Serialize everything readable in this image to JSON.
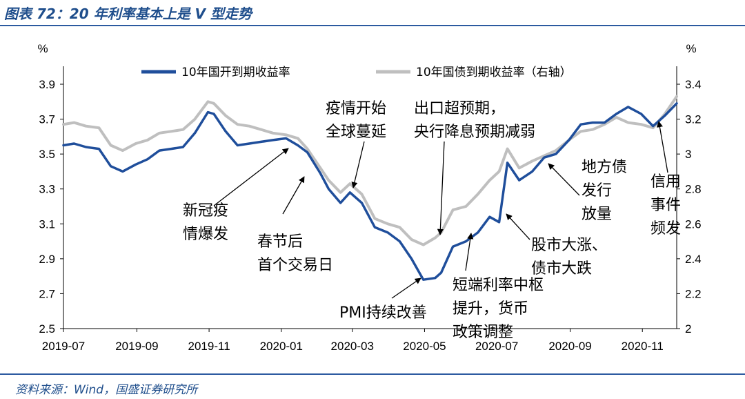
{
  "figure": {
    "title": "图表 72：20 年利率基本上是 V 型走势",
    "source": "资料来源：Wind，国盛证券研究所"
  },
  "chart_data": {
    "type": "line",
    "left_unit": "%",
    "right_unit": "%",
    "y_left": {
      "min": 2.5,
      "max": 3.9,
      "ticks": [
        "3.9",
        "3.7",
        "3.5",
        "3.3",
        "3.1",
        "2.9",
        "2.7",
        "2.5"
      ],
      "tick_values": [
        3.9,
        3.7,
        3.5,
        3.3,
        3.1,
        2.9,
        2.7,
        2.5
      ]
    },
    "y_right": {
      "min": 2.0,
      "max": 3.4,
      "ticks": [
        "3.4",
        "3.2",
        "3",
        "2.8",
        "2.6",
        "2.4",
        "2.2",
        "2"
      ],
      "tick_values": [
        3.4,
        3.2,
        3.0,
        2.8,
        2.6,
        2.4,
        2.2,
        2.0
      ]
    },
    "x_ticks": [
      "2019-07",
      "2019-09",
      "2019-11",
      "2020-01",
      "2020-03",
      "2020-05",
      "2020-07",
      "2020-09",
      "2020-11"
    ],
    "x_range": [
      "2019-07-01",
      "2020-11-30"
    ],
    "grid": false,
    "legend_position": "top",
    "series": [
      {
        "name": "10年国开到期收益率",
        "axis": "left",
        "color": "#1f4e9b",
        "points": [
          [
            "2019-07-01",
            3.55
          ],
          [
            "2019-07-10",
            3.56
          ],
          [
            "2019-07-20",
            3.54
          ],
          [
            "2019-07-31",
            3.53
          ],
          [
            "2019-08-10",
            3.43
          ],
          [
            "2019-08-20",
            3.4
          ],
          [
            "2019-08-31",
            3.44
          ],
          [
            "2019-09-10",
            3.47
          ],
          [
            "2019-09-20",
            3.52
          ],
          [
            "2019-09-30",
            3.53
          ],
          [
            "2019-10-10",
            3.54
          ],
          [
            "2019-10-20",
            3.62
          ],
          [
            "2019-10-31",
            3.74
          ],
          [
            "2019-11-05",
            3.73
          ],
          [
            "2019-11-15",
            3.63
          ],
          [
            "2019-11-25",
            3.55
          ],
          [
            "2019-12-05",
            3.56
          ],
          [
            "2019-12-15",
            3.57
          ],
          [
            "2019-12-25",
            3.58
          ],
          [
            "2020-01-05",
            3.59
          ],
          [
            "2020-01-15",
            3.55
          ],
          [
            "2020-01-23",
            3.51
          ],
          [
            "2020-02-03",
            3.39
          ],
          [
            "2020-02-10",
            3.3
          ],
          [
            "2020-02-20",
            3.22
          ],
          [
            "2020-02-28",
            3.28
          ],
          [
            "2020-03-09",
            3.22
          ],
          [
            "2020-03-20",
            3.08
          ],
          [
            "2020-03-31",
            3.05
          ],
          [
            "2020-04-10",
            3.0
          ],
          [
            "2020-04-20",
            2.9
          ],
          [
            "2020-04-30",
            2.78
          ],
          [
            "2020-05-10",
            2.79
          ],
          [
            "2020-05-15",
            2.82
          ],
          [
            "2020-05-25",
            2.97
          ],
          [
            "2020-06-05",
            3.0
          ],
          [
            "2020-06-15",
            3.05
          ],
          [
            "2020-06-25",
            3.14
          ],
          [
            "2020-07-03",
            3.11
          ],
          [
            "2020-07-10",
            3.45
          ],
          [
            "2020-07-20",
            3.35
          ],
          [
            "2020-07-31",
            3.4
          ],
          [
            "2020-08-10",
            3.48
          ],
          [
            "2020-08-20",
            3.5
          ],
          [
            "2020-08-31",
            3.58
          ],
          [
            "2020-09-10",
            3.67
          ],
          [
            "2020-09-20",
            3.68
          ],
          [
            "2020-09-30",
            3.68
          ],
          [
            "2020-10-10",
            3.73
          ],
          [
            "2020-10-20",
            3.77
          ],
          [
            "2020-10-31",
            3.73
          ],
          [
            "2020-11-10",
            3.66
          ],
          [
            "2020-11-20",
            3.72
          ],
          [
            "2020-11-30",
            3.79
          ]
        ]
      },
      {
        "name": "10年国债到期收益率（右轴）",
        "axis": "right",
        "color": "#bfbfbf",
        "points": [
          [
            "2019-07-01",
            3.17
          ],
          [
            "2019-07-10",
            3.18
          ],
          [
            "2019-07-20",
            3.16
          ],
          [
            "2019-07-31",
            3.15
          ],
          [
            "2019-08-10",
            3.05
          ],
          [
            "2019-08-20",
            3.02
          ],
          [
            "2019-08-31",
            3.06
          ],
          [
            "2019-09-10",
            3.08
          ],
          [
            "2019-09-20",
            3.12
          ],
          [
            "2019-09-30",
            3.13
          ],
          [
            "2019-10-10",
            3.14
          ],
          [
            "2019-10-20",
            3.2
          ],
          [
            "2019-10-31",
            3.3
          ],
          [
            "2019-11-05",
            3.29
          ],
          [
            "2019-11-15",
            3.22
          ],
          [
            "2019-11-25",
            3.17
          ],
          [
            "2019-12-05",
            3.16
          ],
          [
            "2019-12-15",
            3.14
          ],
          [
            "2019-12-25",
            3.12
          ],
          [
            "2020-01-05",
            3.11
          ],
          [
            "2020-01-15",
            3.09
          ],
          [
            "2020-01-23",
            3.03
          ],
          [
            "2020-02-03",
            2.92
          ],
          [
            "2020-02-10",
            2.85
          ],
          [
            "2020-02-20",
            2.78
          ],
          [
            "2020-02-28",
            2.83
          ],
          [
            "2020-03-09",
            2.77
          ],
          [
            "2020-03-20",
            2.63
          ],
          [
            "2020-03-31",
            2.6
          ],
          [
            "2020-04-10",
            2.58
          ],
          [
            "2020-04-20",
            2.51
          ],
          [
            "2020-04-30",
            2.48
          ],
          [
            "2020-05-10",
            2.52
          ],
          [
            "2020-05-15",
            2.55
          ],
          [
            "2020-05-25",
            2.68
          ],
          [
            "2020-06-05",
            2.7
          ],
          [
            "2020-06-15",
            2.77
          ],
          [
            "2020-06-25",
            2.85
          ],
          [
            "2020-07-03",
            2.9
          ],
          [
            "2020-07-10",
            3.03
          ],
          [
            "2020-07-20",
            2.92
          ],
          [
            "2020-07-31",
            2.96
          ],
          [
            "2020-08-10",
            2.99
          ],
          [
            "2020-08-20",
            3.02
          ],
          [
            "2020-08-31",
            3.08
          ],
          [
            "2020-09-10",
            3.13
          ],
          [
            "2020-09-20",
            3.14
          ],
          [
            "2020-09-30",
            3.17
          ],
          [
            "2020-10-10",
            3.21
          ],
          [
            "2020-10-20",
            3.18
          ],
          [
            "2020-10-31",
            3.17
          ],
          [
            "2020-11-10",
            3.15
          ],
          [
            "2020-11-20",
            3.23
          ],
          [
            "2020-11-30",
            3.33
          ]
        ]
      }
    ],
    "annotations": [
      {
        "id": "xinguan",
        "lines": [
          "新冠疫",
          "情爆发"
        ]
      },
      {
        "id": "chunjie",
        "lines": [
          "春节后",
          "首个交易日"
        ]
      },
      {
        "id": "yiqing",
        "lines": [
          "疫情开始",
          "全球蔓延"
        ]
      },
      {
        "id": "chukou",
        "lines": [
          "出口超预期，",
          "央行降息预期减弱"
        ]
      },
      {
        "id": "pmi",
        "lines": [
          "PMI持续改善"
        ]
      },
      {
        "id": "duanduan",
        "lines": [
          "短端利率中枢",
          "提升，货币",
          "政策调整"
        ]
      },
      {
        "id": "gushi",
        "lines": [
          "股市大涨、",
          "债市大跌"
        ]
      },
      {
        "id": "difang",
        "lines": [
          "地方债",
          "发行",
          "放量"
        ]
      },
      {
        "id": "xinyong",
        "lines": [
          "信用",
          "事件",
          "频发"
        ]
      }
    ]
  }
}
